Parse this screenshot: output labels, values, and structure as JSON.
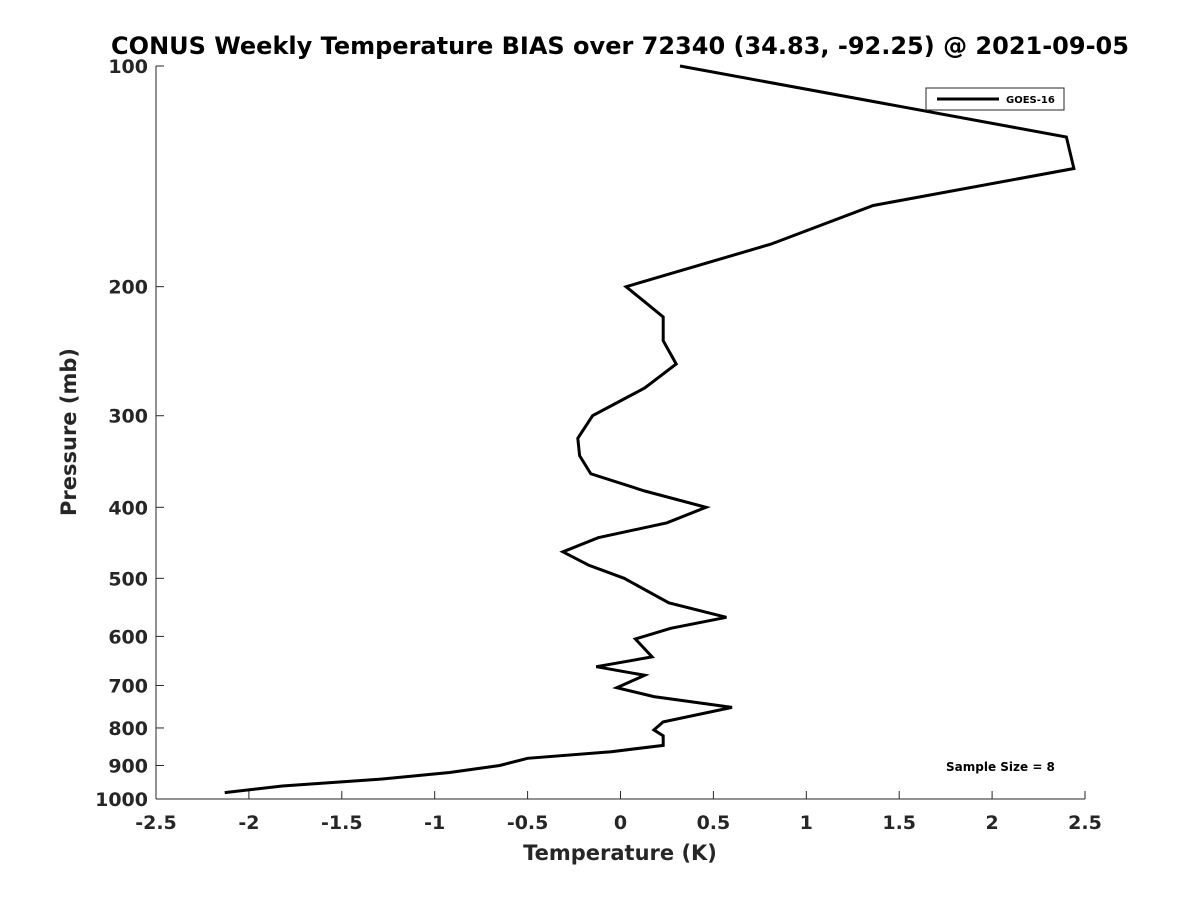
{
  "chart_data": {
    "type": "line",
    "title": "CONUS Weekly Temperature BIAS over 72340 (34.83, -92.25) @ 2021-09-05",
    "xlabel": "Temperature (K)",
    "ylabel": "Pressure (mb)",
    "xlim": [
      -2.5,
      2.5
    ],
    "ylim": [
      100,
      1000
    ],
    "yscale": "log",
    "y_reversed": true,
    "xticks": [
      -2.5,
      -2,
      -1.5,
      -1,
      -0.5,
      0,
      0.5,
      1,
      1.5,
      2,
      2.5
    ],
    "xtick_labels": [
      "-2.5",
      "-2",
      "-1.5",
      "-1",
      "-0.5",
      "0",
      "0.5",
      "1",
      "1.5",
      "2",
      "2.5"
    ],
    "yticks": [
      100,
      200,
      300,
      400,
      500,
      600,
      700,
      800,
      900,
      1000
    ],
    "ytick_labels": [
      "100",
      "200",
      "300",
      "400",
      "500",
      "600",
      "700",
      "800",
      "900",
      "1000"
    ],
    "grid": false,
    "legend_position": "top-right",
    "series": [
      {
        "name": "GOES-16",
        "color": "#000000",
        "points": [
          {
            "x": 0.32,
            "p": 100
          },
          {
            "x": 2.4,
            "p": 125
          },
          {
            "x": 2.44,
            "p": 138
          },
          {
            "x": 1.36,
            "p": 155
          },
          {
            "x": 0.81,
            "p": 175
          },
          {
            "x": 0.03,
            "p": 200
          },
          {
            "x": 0.23,
            "p": 220
          },
          {
            "x": 0.23,
            "p": 237
          },
          {
            "x": 0.3,
            "p": 255
          },
          {
            "x": 0.13,
            "p": 275
          },
          {
            "x": -0.15,
            "p": 300
          },
          {
            "x": -0.23,
            "p": 322
          },
          {
            "x": -0.22,
            "p": 340
          },
          {
            "x": -0.16,
            "p": 360
          },
          {
            "x": 0.13,
            "p": 380
          },
          {
            "x": 0.46,
            "p": 400
          },
          {
            "x": 0.25,
            "p": 420
          },
          {
            "x": -0.12,
            "p": 440
          },
          {
            "x": -0.31,
            "p": 460
          },
          {
            "x": -0.17,
            "p": 480
          },
          {
            "x": 0.02,
            "p": 500
          },
          {
            "x": 0.26,
            "p": 540
          },
          {
            "x": 0.57,
            "p": 565
          },
          {
            "x": 0.27,
            "p": 585
          },
          {
            "x": 0.08,
            "p": 605
          },
          {
            "x": 0.17,
            "p": 640
          },
          {
            "x": -0.13,
            "p": 660
          },
          {
            "x": 0.13,
            "p": 678
          },
          {
            "x": -0.02,
            "p": 705
          },
          {
            "x": 0.18,
            "p": 725
          },
          {
            "x": 0.6,
            "p": 750
          },
          {
            "x": 0.23,
            "p": 785
          },
          {
            "x": 0.18,
            "p": 805
          },
          {
            "x": 0.23,
            "p": 820
          },
          {
            "x": 0.23,
            "p": 845
          },
          {
            "x": -0.05,
            "p": 862
          },
          {
            "x": -0.5,
            "p": 880
          },
          {
            "x": -0.65,
            "p": 900
          },
          {
            "x": -0.92,
            "p": 920
          },
          {
            "x": -1.3,
            "p": 940
          },
          {
            "x": -1.82,
            "p": 960
          },
          {
            "x": -2.13,
            "p": 980
          }
        ]
      }
    ],
    "annotation": "Sample Size = 8"
  }
}
